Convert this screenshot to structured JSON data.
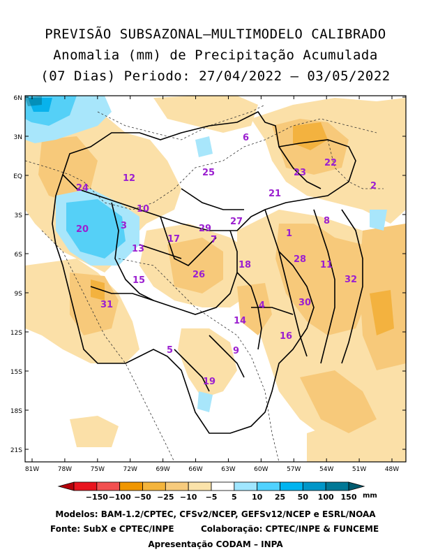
{
  "title": {
    "line1": "PREVISÃO SUBSAZONAL—MULTIMODELO CALIBRADO",
    "line2": "Anomalia (mm) de Precipitação Acumulada",
    "line3": "(07 Dias) Periodo: 27/04/2022 — 03/05/2022"
  },
  "axes": {
    "lat_ticks": [
      "6N",
      "3N",
      "EQ",
      "3S",
      "6S",
      "9S",
      "12S",
      "15S",
      "18S",
      "21S"
    ],
    "lon_ticks": [
      "81W",
      "78W",
      "75W",
      "72W",
      "69W",
      "66W",
      "63W",
      "60W",
      "57W",
      "54W",
      "51W",
      "48W"
    ]
  },
  "basins": [
    {
      "id": "1"
    },
    {
      "id": "2"
    },
    {
      "id": "3"
    },
    {
      "id": "4"
    },
    {
      "id": "5"
    },
    {
      "id": "6"
    },
    {
      "id": "7"
    },
    {
      "id": "8"
    },
    {
      "id": "9"
    },
    {
      "id": "10"
    },
    {
      "id": "11"
    },
    {
      "id": "12"
    },
    {
      "id": "13"
    },
    {
      "id": "14"
    },
    {
      "id": "15"
    },
    {
      "id": "16"
    },
    {
      "id": "17"
    },
    {
      "id": "18"
    },
    {
      "id": "19"
    },
    {
      "id": "20"
    },
    {
      "id": "21"
    },
    {
      "id": "22"
    },
    {
      "id": "23"
    },
    {
      "id": "24"
    },
    {
      "id": "25"
    },
    {
      "id": "26"
    },
    {
      "id": "27"
    },
    {
      "id": "28"
    },
    {
      "id": "29"
    },
    {
      "id": "30"
    },
    {
      "id": "31"
    },
    {
      "id": "32"
    }
  ],
  "legend": {
    "unit": "mm",
    "ticks": [
      "-150",
      "-100",
      "-50",
      "-25",
      "-10",
      "-5",
      "5",
      "10",
      "25",
      "50",
      "100",
      "150"
    ],
    "colors": [
      "#b4000a",
      "#e8141e",
      "#f25050",
      "#f09600",
      "#f4b43c",
      "#f7cb7d",
      "#fbe3aa",
      "#ffffff",
      "#a0e6ff",
      "#50d2ff",
      "#00b4f0",
      "#0096c8",
      "#007896",
      "#005a6e"
    ]
  },
  "colors": {
    "orange_light": "#fbe0a8",
    "orange_mid": "#f7c97a",
    "orange_strong": "#f3b23f",
    "blue_light": "#a8e6fb",
    "blue_mid": "#55d0f7",
    "blue_strong": "#08b2ec",
    "label_purple": "#9b1fd0"
  },
  "credits": {
    "line1": "Modelos: BAM-1.2/CPTEC, CFSv2/NCEP, GEFSv12/NCEP e ESRL/NOAA",
    "line2a": "Fonte: SubX e CPTEC/INPE",
    "line2b": "Colaboração: CPTEC/INPE & FUNCEME",
    "line3": "Apresentação CODAM – INPA"
  }
}
